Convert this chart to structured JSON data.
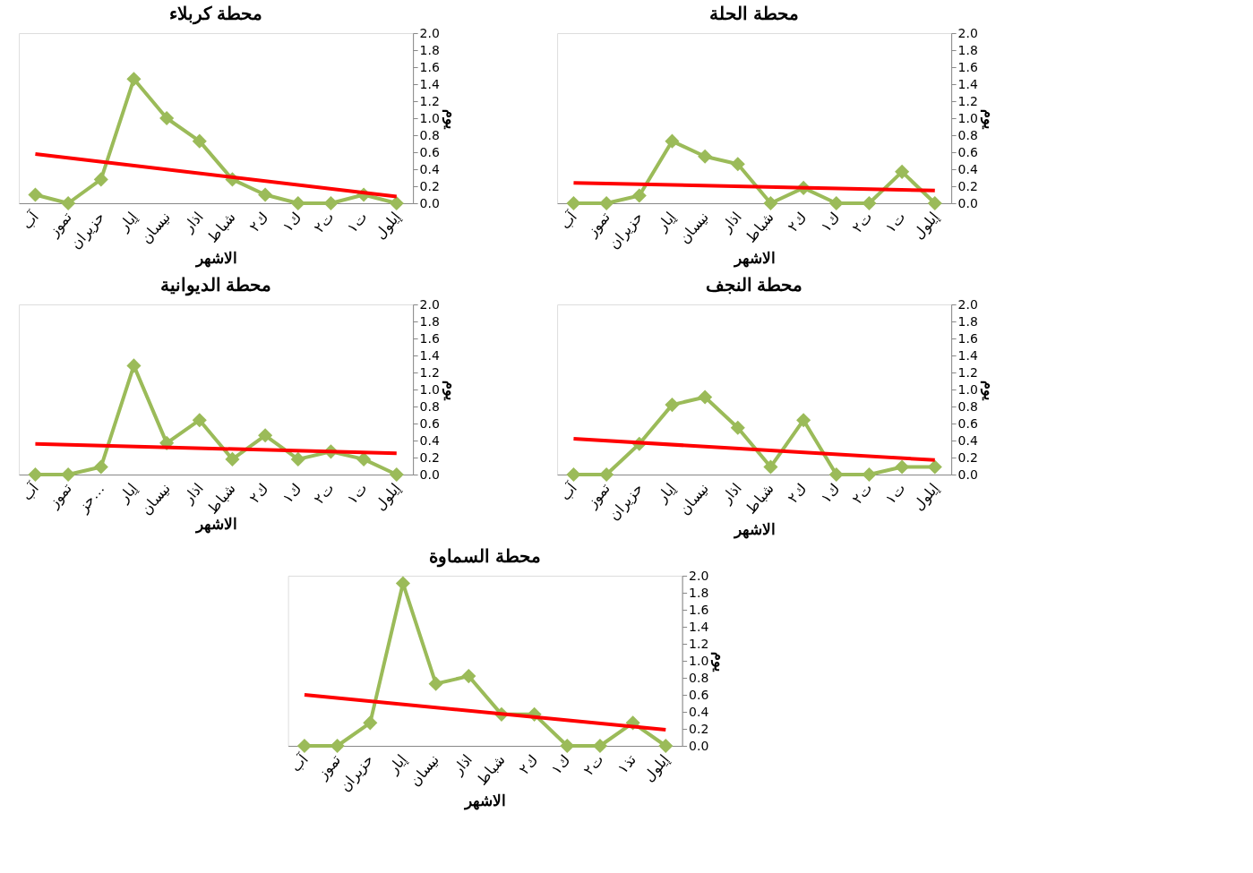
{
  "chart_data": [
    {
      "type": "line",
      "title": "محطة  كربلاء",
      "xlabel": "الاشهر",
      "ylabel": "يوم",
      "categories": [
        "آب",
        "تموز",
        "حزيران",
        "إيار",
        "نيسان",
        "اذار",
        "شباط",
        "ك٢",
        "ك١",
        "ت٢",
        "ت١",
        "إيلول"
      ],
      "series": [
        {
          "color": "#9bbb59",
          "values": [
            0.1,
            0.0,
            0.28,
            1.46,
            1.0,
            0.73,
            0.28,
            0.1,
            0.0,
            0.0,
            0.1,
            0.0
          ]
        },
        {
          "type": "line",
          "color": "#ff0000",
          "marker": "none",
          "values": [
            0.58,
            null,
            null,
            null,
            null,
            null,
            null,
            null,
            null,
            null,
            null,
            0.08
          ]
        }
      ],
      "ylim": [
        0,
        2
      ],
      "yticks": [
        {
          "value": 0,
          "label": "0.0"
        },
        0.2,
        0.4,
        0.6,
        0.8,
        {
          "value": 1,
          "label": "1.0"
        },
        1.2,
        1.4,
        1.6,
        1.8,
        {
          "value": 2,
          "label": "2.0"
        }
      ],
      "marker": "diamond",
      "grid": false
    },
    {
      "type": "line",
      "title": "محطة الحلة",
      "xlabel": "الاشهر",
      "ylabel": "يوم",
      "categories": [
        "آب",
        "تموز",
        "حزيران",
        "إيار",
        "نيسان",
        "اذار",
        "شباط",
        "ك٢",
        "ك١",
        "ت٢",
        "ت١",
        "إيلول"
      ],
      "series": [
        {
          "color": "#9bbb59",
          "values": [
            0.0,
            0.0,
            0.09,
            0.73,
            0.55,
            0.46,
            0.0,
            0.18,
            0.0,
            0.0,
            0.37,
            0.0
          ]
        },
        {
          "type": "line",
          "color": "#ff0000",
          "marker": "none",
          "values": [
            0.24,
            null,
            null,
            null,
            null,
            null,
            null,
            null,
            null,
            null,
            null,
            0.15
          ]
        }
      ],
      "ylim": [
        0,
        2
      ],
      "yticks": [
        {
          "value": 0,
          "label": "0.0"
        },
        0.2,
        0.4,
        0.6,
        0.8,
        {
          "value": 1,
          "label": "1.0"
        },
        1.2,
        1.4,
        1.6,
        1.8,
        {
          "value": 2,
          "label": "2.0"
        }
      ],
      "marker": "diamond",
      "grid": false
    },
    {
      "type": "line",
      "title": "محطة الديوانية",
      "xlabel": "الاشهر",
      "ylabel": "يوم",
      "categories": [
        "آب",
        "تموز",
        "حز…",
        "إيار",
        "نيسان",
        "اذار",
        "شباط",
        "ك٢",
        "ك١",
        "ت٢",
        "ت١",
        "إيلول"
      ],
      "series": [
        {
          "color": "#9bbb59",
          "values": [
            0.0,
            0.0,
            0.09,
            1.28,
            0.37,
            0.64,
            0.18,
            0.46,
            0.18,
            0.27,
            0.18,
            0.0
          ]
        },
        {
          "type": "line",
          "color": "#ff0000",
          "marker": "none",
          "values": [
            0.36,
            null,
            null,
            null,
            null,
            null,
            null,
            null,
            null,
            null,
            null,
            0.25
          ]
        }
      ],
      "ylim": [
        0,
        2
      ],
      "yticks": [
        {
          "value": 0,
          "label": "0.0"
        },
        0.2,
        0.4,
        0.6,
        0.8,
        {
          "value": 1,
          "label": "1.0"
        },
        1.2,
        1.4,
        1.6,
        1.8,
        {
          "value": 2,
          "label": "2.0"
        }
      ],
      "marker": "diamond",
      "grid": false
    },
    {
      "type": "line",
      "title": "محطة النجف",
      "xlabel": "الاشهر",
      "ylabel": "يوم",
      "categories": [
        "آب",
        "تموز",
        "حزيران",
        "إيار",
        "نيسان",
        "اذار",
        "شباط",
        "ك٢",
        "ك١",
        "ت٢",
        "ت١",
        "إيلول"
      ],
      "series": [
        {
          "color": "#9bbb59",
          "values": [
            0.0,
            0.0,
            0.36,
            0.82,
            0.91,
            0.55,
            0.09,
            0.64,
            0.0,
            0.0,
            0.09,
            0.09
          ]
        },
        {
          "type": "line",
          "color": "#ff0000",
          "marker": "none",
          "values": [
            0.42,
            null,
            null,
            null,
            null,
            null,
            null,
            null,
            null,
            null,
            null,
            0.17
          ]
        }
      ],
      "ylim": [
        0,
        2
      ],
      "yticks": [
        {
          "value": 0,
          "label": "0.0"
        },
        0.2,
        0.4,
        0.6,
        0.8,
        {
          "value": 1,
          "label": "1.0"
        },
        1.2,
        1.4,
        1.6,
        1.8,
        {
          "value": 2,
          "label": "2.0"
        }
      ],
      "marker": "diamond",
      "grid": false
    },
    {
      "type": "line",
      "title": "محطة السماوة",
      "xlabel": "الاشهر",
      "ylabel": "يوم",
      "categories": [
        "آب",
        "تموز",
        "حزيران",
        "إيار",
        "نيسان",
        "اذار",
        "شباط",
        "ك٢",
        "ك١",
        "ت٢",
        "تذ١",
        "إيلول"
      ],
      "series": [
        {
          "color": "#9bbb59",
          "values": [
            0.0,
            0.0,
            0.27,
            1.91,
            0.73,
            0.82,
            0.37,
            0.37,
            0.0,
            0.0,
            0.27,
            0.0
          ]
        },
        {
          "type": "line",
          "color": "#ff0000",
          "marker": "none",
          "values": [
            0.6,
            null,
            null,
            null,
            null,
            null,
            null,
            null,
            null,
            null,
            null,
            0.19
          ]
        }
      ],
      "ylim": [
        0,
        2
      ],
      "yticks": [
        {
          "value": 0,
          "label": "0.0"
        },
        0.2,
        0.4,
        0.6,
        0.8,
        {
          "value": 1,
          "label": "1.0"
        },
        1.2,
        1.4,
        1.6,
        1.8,
        {
          "value": 2,
          "label": "2.0"
        }
      ],
      "marker": "diamond",
      "grid": false
    }
  ]
}
